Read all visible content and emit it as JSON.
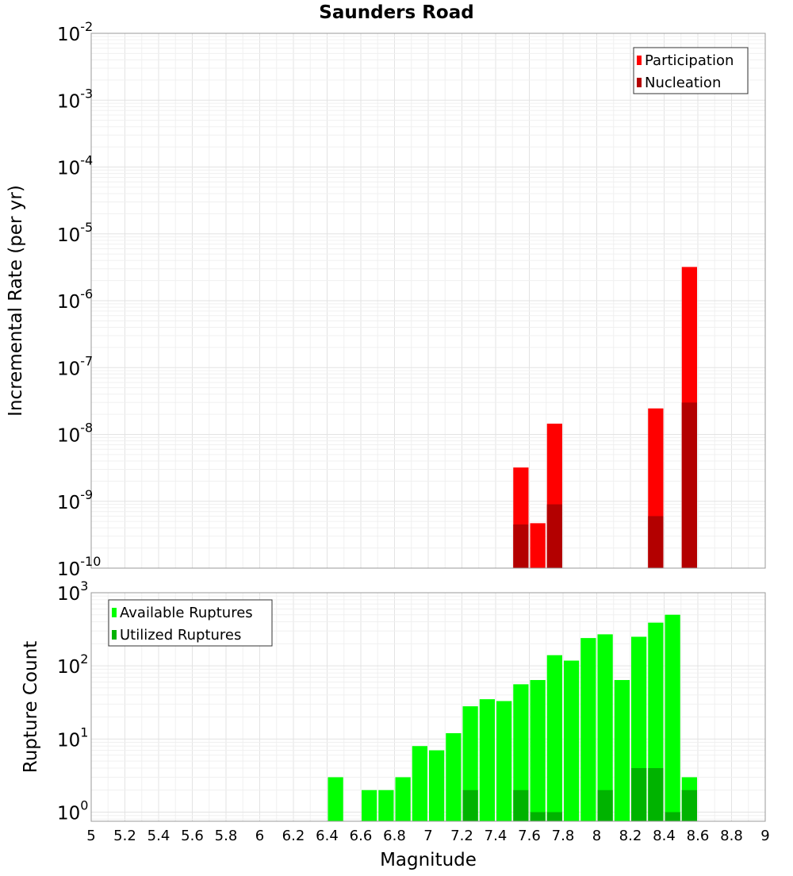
{
  "chart_data": [
    {
      "type": "bar",
      "title": "Saunders Road",
      "ylabel": "Incremental Rate (per yr)",
      "xlabel": "",
      "yscale": "log",
      "ylim": [
        1e-10,
        0.01
      ],
      "xlim": [
        5,
        9
      ],
      "y_tick_labels": [
        {
          "base": "10",
          "exp": "-2"
        },
        {
          "base": "10",
          "exp": "-3"
        },
        {
          "base": "10",
          "exp": "-4"
        },
        {
          "base": "10",
          "exp": "-5"
        },
        {
          "base": "10",
          "exp": "-6"
        },
        {
          "base": "10",
          "exp": "-7"
        },
        {
          "base": "10",
          "exp": "-8"
        },
        {
          "base": "10",
          "exp": "-9"
        },
        {
          "base": "10",
          "exp": "-10"
        }
      ],
      "legend_position": "top-right",
      "grid": true,
      "series": [
        {
          "name": "Participation",
          "color": "#ff0000",
          "x": [
            7.55,
            7.65,
            7.75,
            8.35,
            8.55
          ],
          "values": [
            3.2e-09,
            4.7e-10,
            1.45e-08,
            2.45e-08,
            3.2e-06
          ]
        },
        {
          "name": "Nucleation",
          "color": "#b30000",
          "x": [
            7.55,
            7.75,
            8.35,
            8.55
          ],
          "values": [
            4.5e-10,
            9e-10,
            6e-10,
            3e-08
          ]
        }
      ]
    },
    {
      "type": "bar",
      "title": "",
      "ylabel": "Rupture Count",
      "xlabel": "Magnitude",
      "yscale": "log",
      "ylim": [
        0.75,
        1000
      ],
      "xlim": [
        5,
        9
      ],
      "x_tick_labels": [
        "5",
        "5.2",
        "5.4",
        "5.6",
        "5.8",
        "6",
        "6.2",
        "6.4",
        "6.6",
        "6.8",
        "7",
        "7.2",
        "7.4",
        "7.6",
        "7.8",
        "8",
        "8.2",
        "8.4",
        "8.6",
        "8.8",
        "9"
      ],
      "y_tick_labels": [
        {
          "base": "10",
          "exp": "3"
        },
        {
          "base": "10",
          "exp": "2"
        },
        {
          "base": "10",
          "exp": "1"
        },
        {
          "base": "10",
          "exp": "0"
        }
      ],
      "legend_position": "top-left",
      "grid": true,
      "series": [
        {
          "name": "Available Ruptures",
          "color": "#00ff00",
          "x": [
            6.45,
            6.65,
            6.75,
            6.85,
            6.95,
            7.05,
            7.15,
            7.25,
            7.35,
            7.45,
            7.55,
            7.65,
            7.75,
            7.85,
            7.95,
            8.05,
            8.15,
            8.25,
            8.35,
            8.45,
            8.55
          ],
          "values": [
            3,
            2,
            2,
            3,
            8,
            7,
            12,
            28,
            35,
            33,
            56,
            64,
            140,
            118,
            240,
            270,
            64,
            250,
            390,
            500,
            3
          ]
        },
        {
          "name": "Utilized Ruptures",
          "color": "#00b300",
          "x": [
            7.25,
            7.55,
            7.65,
            7.75,
            8.05,
            8.25,
            8.35,
            8.45,
            8.55
          ],
          "values": [
            2,
            2,
            1,
            1,
            2,
            4,
            4,
            1,
            2
          ]
        }
      ]
    }
  ]
}
